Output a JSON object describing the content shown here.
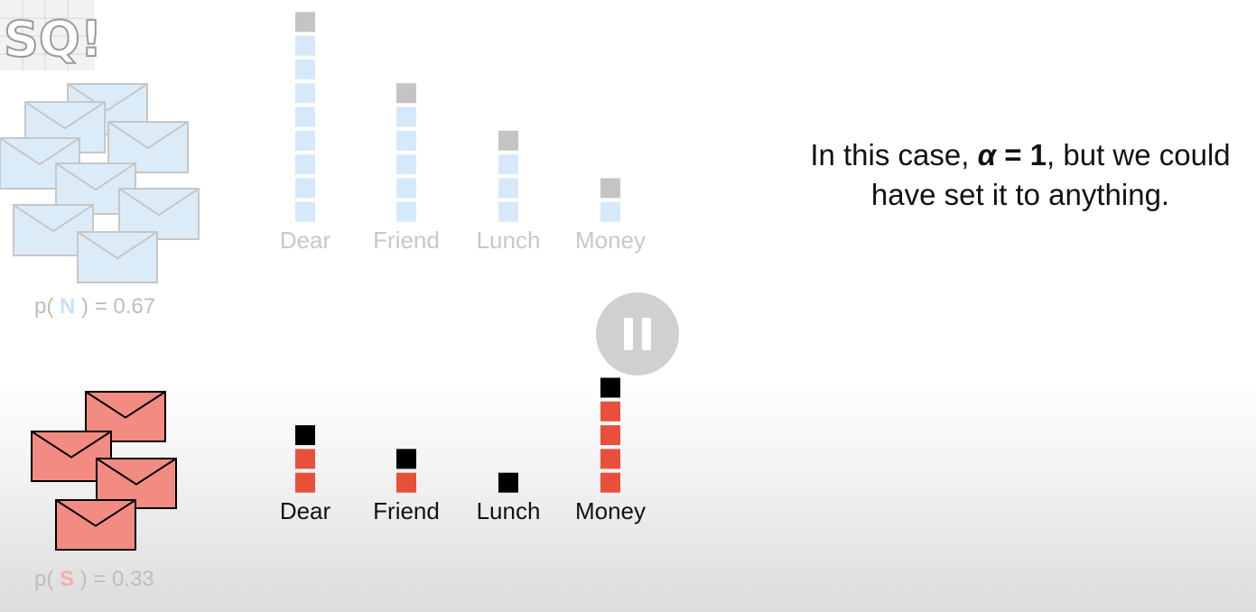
{
  "logo": {
    "text": "SQ!",
    "icon": "statquest-logo-icon"
  },
  "normal": {
    "prob_prefix": "p(",
    "class_letter": "N",
    "prob_suffix": ") = 0.67",
    "colors": {
      "box": "#d5e9fa",
      "pseudo": "#c4c4c4",
      "label": "#c8c8c8",
      "envelope": "#dcebf8",
      "envelope_line": "#c7c7c7"
    },
    "words": [
      {
        "label": "Dear",
        "count": 8,
        "pseudo": 1
      },
      {
        "label": "Friend",
        "count": 5,
        "pseudo": 1
      },
      {
        "label": "Lunch",
        "count": 3,
        "pseudo": 1
      },
      {
        "label": "Money",
        "count": 1,
        "pseudo": 1
      }
    ]
  },
  "spam": {
    "prob_prefix": "p(",
    "class_letter": "S",
    "prob_suffix": ") = 0.33",
    "colors": {
      "box": "#e8503b",
      "pseudo": "#000000",
      "label": "#111111",
      "envelope": "#f28b82",
      "envelope_line": "#000000"
    },
    "words": [
      {
        "label": "Dear",
        "count": 2,
        "pseudo": 1
      },
      {
        "label": "Friend",
        "count": 1,
        "pseudo": 1
      },
      {
        "label": "Lunch",
        "count": 0,
        "pseudo": 1
      },
      {
        "label": "Money",
        "count": 4,
        "pseudo": 1
      }
    ]
  },
  "caption": {
    "part1": "In this case, ",
    "alpha": "α",
    "part2": " = ",
    "one": "1",
    "part3": ", but we could have set it to anything."
  },
  "player": {
    "pause_icon": "pause-icon"
  }
}
